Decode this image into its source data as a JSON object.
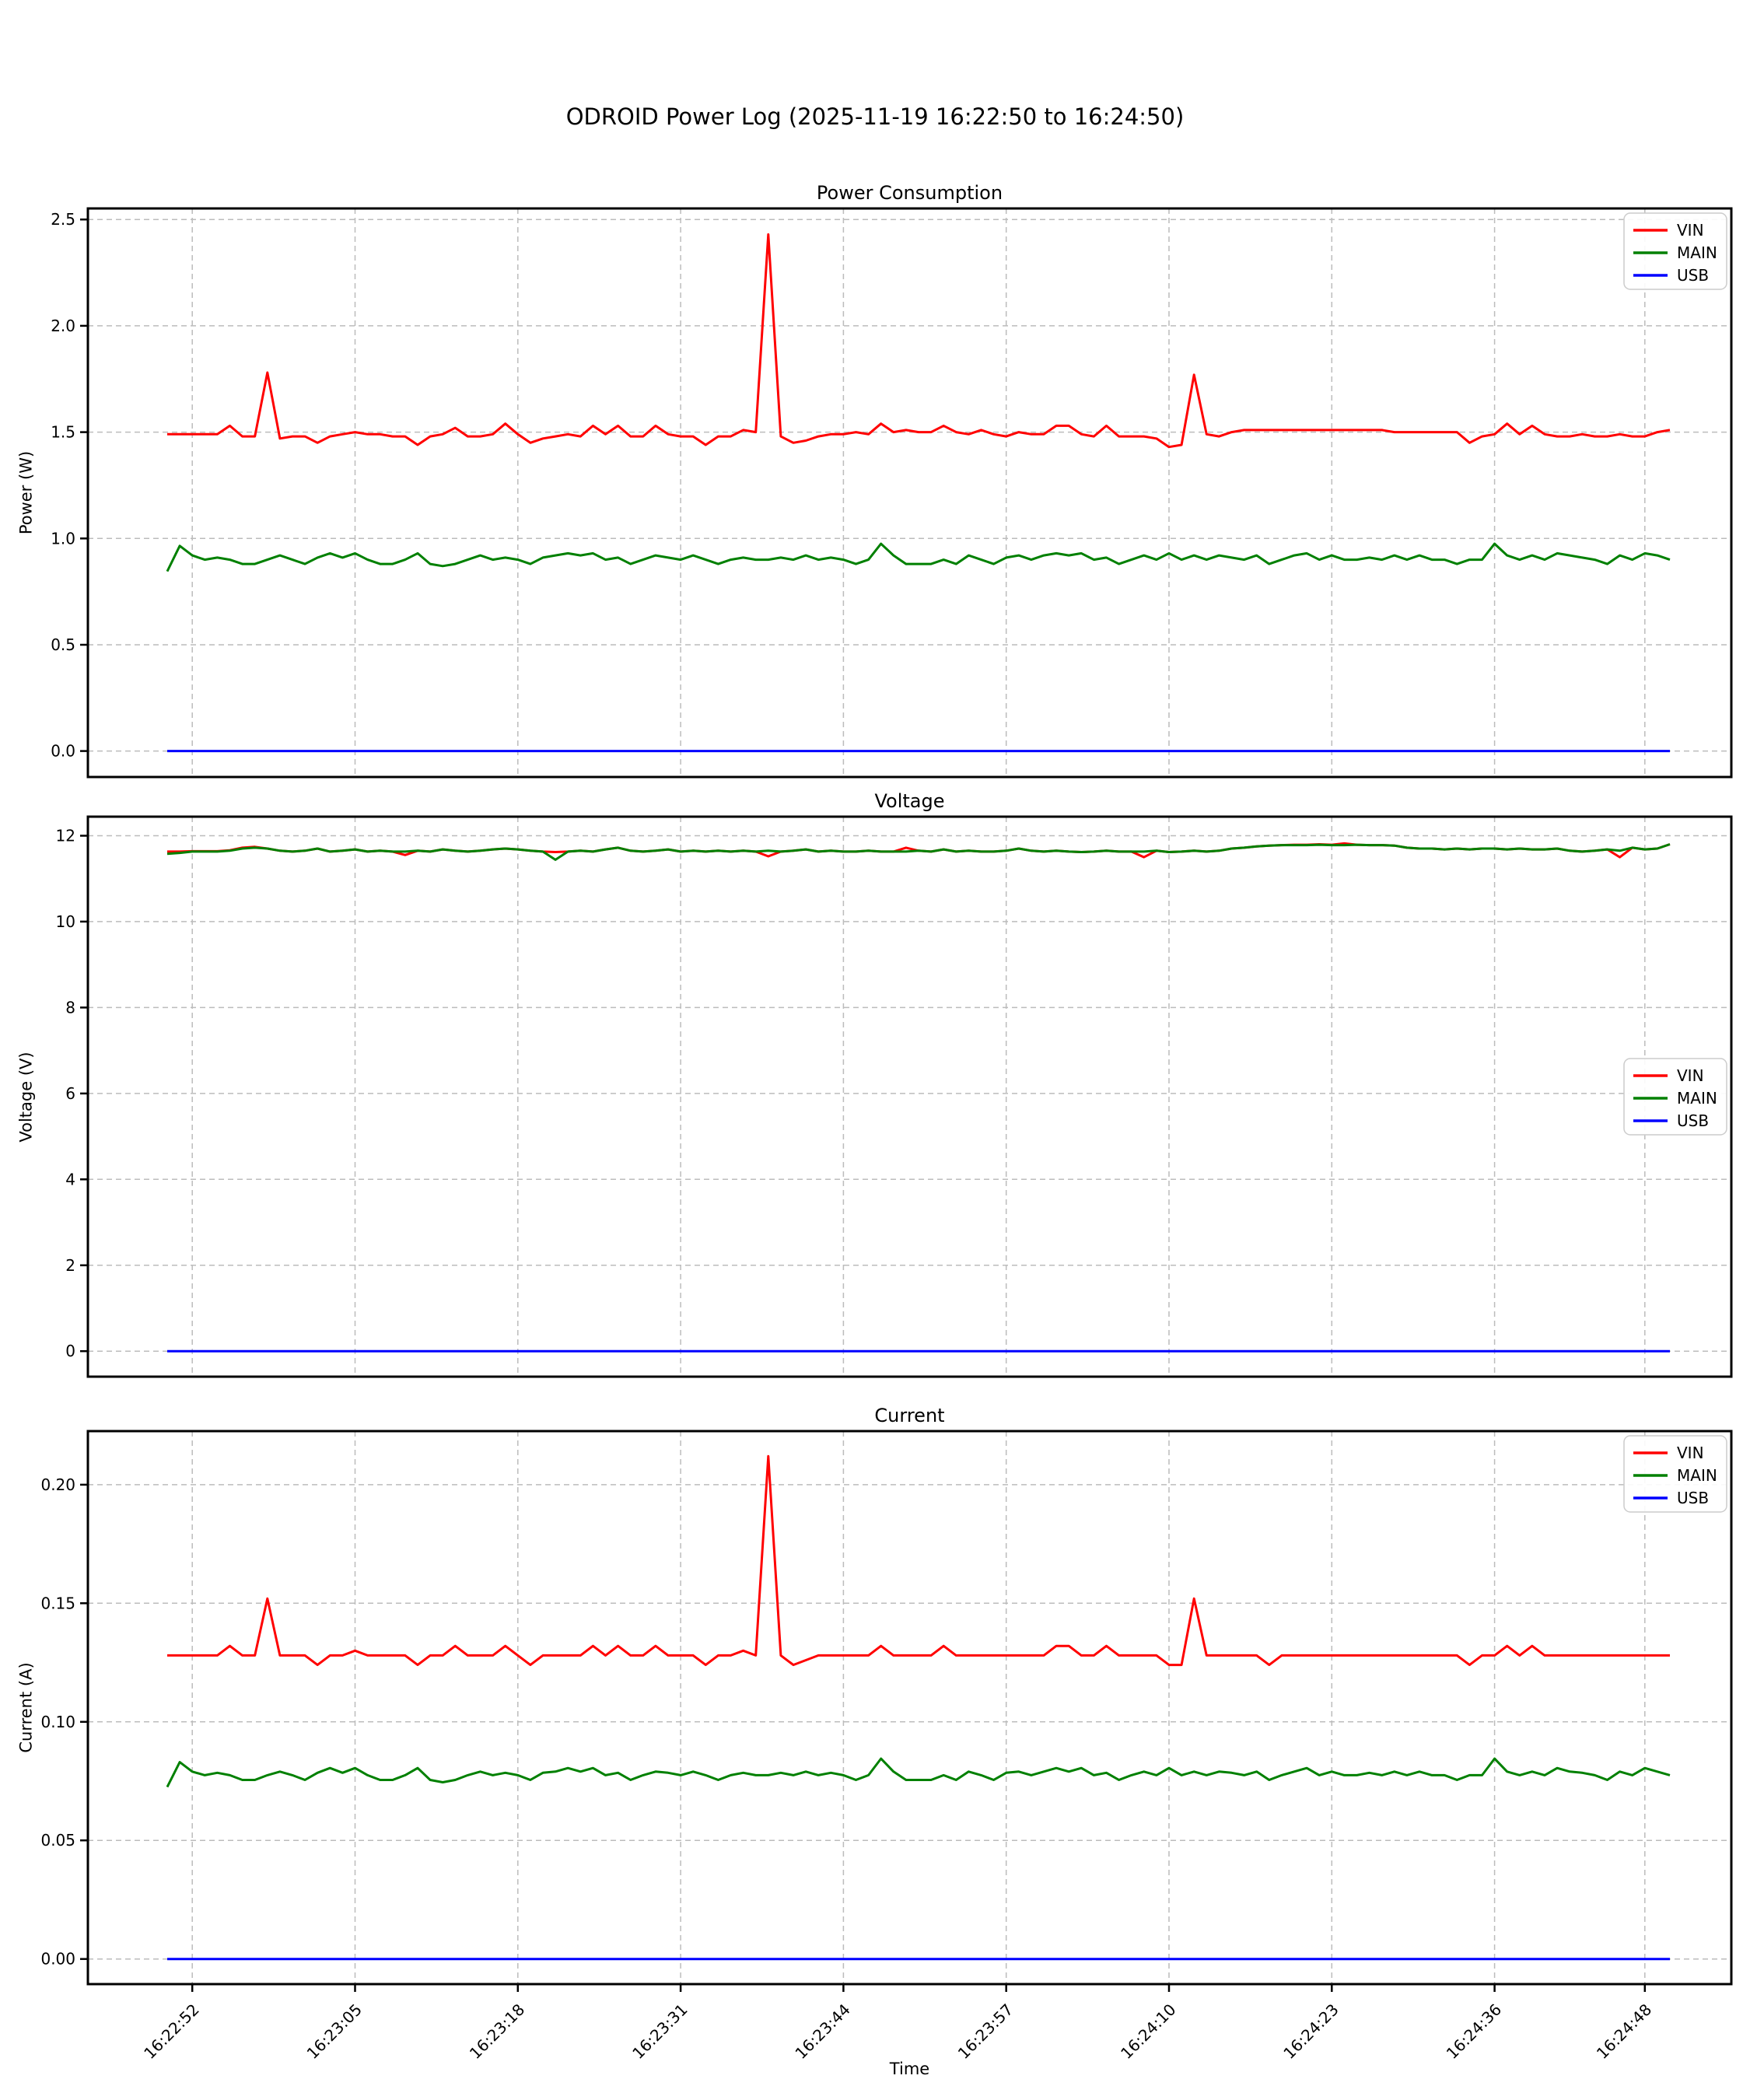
{
  "figure_title": "ODROID Power Log (2025-11-19 16:22:50 to 16:24:50)",
  "colors": {
    "vin": "#ff0000",
    "main": "#008000",
    "usb": "#0000ff",
    "grid": "#bcbcbc",
    "frame": "#000000",
    "legend_border": "#cccccc"
  },
  "legend_labels": [
    "VIN",
    "MAIN",
    "USB"
  ],
  "x_axis": {
    "label": "Time",
    "start_time": "16:22:50",
    "end_time": "16:24:50",
    "sample_interval_seconds": 1,
    "n_seconds": 120,
    "tick_seconds": [
      2,
      15,
      28,
      41,
      54,
      67,
      80,
      93,
      106,
      118
    ],
    "tick_labels": [
      "16:22:52",
      "16:23:05",
      "16:23:18",
      "16:23:31",
      "16:23:44",
      "16:23:57",
      "16:24:10",
      "16:24:23",
      "16:24:36",
      "16:24:48"
    ]
  },
  "chart_data": [
    {
      "id": "power",
      "type": "line",
      "title": "Power Consumption",
      "ylabel": "Power (W)",
      "ylim": [
        -0.122,
        2.552
      ],
      "ytick_values": [
        0.0,
        0.5,
        1.0,
        1.5,
        2.0,
        2.5
      ],
      "ytick_labels": [
        "0.0",
        "0.5",
        "1.0",
        "1.5",
        "2.0",
        "2.5"
      ],
      "grid": true,
      "legend_position": "top-right",
      "series": [
        {
          "name": "VIN",
          "color_key": "vin",
          "values": [
            1.49,
            1.49,
            1.49,
            1.49,
            1.49,
            1.53,
            1.48,
            1.48,
            1.78,
            1.47,
            1.48,
            1.48,
            1.45,
            1.48,
            1.49,
            1.5,
            1.49,
            1.49,
            1.48,
            1.48,
            1.44,
            1.48,
            1.49,
            1.52,
            1.48,
            1.48,
            1.49,
            1.54,
            1.49,
            1.45,
            1.47,
            1.48,
            1.49,
            1.48,
            1.53,
            1.49,
            1.53,
            1.48,
            1.48,
            1.53,
            1.49,
            1.48,
            1.48,
            1.44,
            1.48,
            1.48,
            1.51,
            1.5,
            2.43,
            1.48,
            1.45,
            1.46,
            1.48,
            1.49,
            1.49,
            1.5,
            1.49,
            1.54,
            1.5,
            1.51,
            1.5,
            1.5,
            1.53,
            1.5,
            1.49,
            1.51,
            1.49,
            1.48,
            1.5,
            1.49,
            1.49,
            1.53,
            1.53,
            1.49,
            1.48,
            1.53,
            1.48,
            1.48,
            1.48,
            1.47,
            1.43,
            1.44,
            1.77,
            1.49,
            1.48,
            1.5,
            1.51,
            1.51,
            1.51,
            1.51,
            1.51,
            1.51,
            1.51,
            1.51,
            1.51,
            1.51,
            1.51,
            1.51,
            1.5,
            1.5,
            1.5,
            1.5,
            1.5,
            1.5,
            1.45,
            1.48,
            1.49,
            1.54,
            1.49,
            1.53,
            1.49,
            1.48,
            1.48,
            1.49,
            1.48,
            1.48,
            1.49,
            1.48,
            1.48,
            1.5,
            1.51
          ]
        },
        {
          "name": "MAIN",
          "color_key": "main",
          "values": [
            0.845,
            0.965,
            0.92,
            0.9,
            0.91,
            0.9,
            0.88,
            0.88,
            0.9,
            0.92,
            0.9,
            0.88,
            0.91,
            0.93,
            0.91,
            0.93,
            0.9,
            0.88,
            0.88,
            0.9,
            0.93,
            0.88,
            0.87,
            0.88,
            0.9,
            0.92,
            0.9,
            0.91,
            0.9,
            0.88,
            0.91,
            0.92,
            0.93,
            0.92,
            0.93,
            0.9,
            0.91,
            0.88,
            0.9,
            0.92,
            0.91,
            0.9,
            0.92,
            0.9,
            0.88,
            0.9,
            0.91,
            0.9,
            0.9,
            0.91,
            0.9,
            0.92,
            0.9,
            0.91,
            0.9,
            0.88,
            0.9,
            0.975,
            0.92,
            0.88,
            0.88,
            0.88,
            0.9,
            0.88,
            0.92,
            0.9,
            0.88,
            0.91,
            0.92,
            0.9,
            0.92,
            0.93,
            0.92,
            0.93,
            0.9,
            0.91,
            0.88,
            0.9,
            0.92,
            0.9,
            0.93,
            0.9,
            0.92,
            0.9,
            0.92,
            0.91,
            0.9,
            0.92,
            0.88,
            0.9,
            0.92,
            0.93,
            0.9,
            0.92,
            0.9,
            0.9,
            0.91,
            0.9,
            0.92,
            0.9,
            0.92,
            0.9,
            0.9,
            0.88,
            0.9,
            0.9,
            0.975,
            0.92,
            0.9,
            0.92,
            0.9,
            0.93,
            0.92,
            0.91,
            0.9,
            0.88,
            0.92,
            0.9,
            0.93,
            0.92,
            0.9
          ]
        },
        {
          "name": "USB",
          "color_key": "usb",
          "constant": 0.0
        }
      ]
    },
    {
      "id": "voltage",
      "type": "line",
      "title": "Voltage",
      "ylabel": "Voltage (V)",
      "ylim": [
        -0.593,
        12.443
      ],
      "ytick_values": [
        0,
        2,
        4,
        6,
        8,
        10,
        12
      ],
      "ytick_labels": [
        "0",
        "2",
        "4",
        "6",
        "8",
        "10",
        "12"
      ],
      "grid": true,
      "legend_position": "center-right",
      "series": [
        {
          "name": "VIN",
          "color_key": "vin",
          "values": [
            11.63,
            11.63,
            11.64,
            11.64,
            11.64,
            11.66,
            11.72,
            11.74,
            11.7,
            11.65,
            11.63,
            11.65,
            11.7,
            11.63,
            11.65,
            11.68,
            11.63,
            11.65,
            11.63,
            11.55,
            11.65,
            11.63,
            11.68,
            11.65,
            11.63,
            11.65,
            11.68,
            11.7,
            11.68,
            11.65,
            11.63,
            11.62,
            11.63,
            11.65,
            11.63,
            11.68,
            11.72,
            11.65,
            11.63,
            11.65,
            11.68,
            11.63,
            11.65,
            11.63,
            11.65,
            11.63,
            11.65,
            11.63,
            11.52,
            11.63,
            11.65,
            11.68,
            11.63,
            11.65,
            11.63,
            11.63,
            11.65,
            11.63,
            11.63,
            11.72,
            11.65,
            11.63,
            11.68,
            11.63,
            11.65,
            11.63,
            11.63,
            11.65,
            11.7,
            11.65,
            11.63,
            11.65,
            11.63,
            11.62,
            11.63,
            11.65,
            11.63,
            11.63,
            11.5,
            11.65,
            11.62,
            11.63,
            11.65,
            11.63,
            11.65,
            11.7,
            11.72,
            11.75,
            11.77,
            11.78,
            11.79,
            11.79,
            11.8,
            11.79,
            11.82,
            11.79,
            11.78,
            11.78,
            11.77,
            11.72,
            11.7,
            11.7,
            11.68,
            11.7,
            11.68,
            11.7,
            11.7,
            11.68,
            11.7,
            11.68,
            11.68,
            11.7,
            11.65,
            11.63,
            11.65,
            11.68,
            11.5,
            11.72,
            11.68,
            11.7,
            11.8
          ]
        },
        {
          "name": "MAIN",
          "color_key": "main",
          "values": [
            11.58,
            11.6,
            11.63,
            11.63,
            11.63,
            11.65,
            11.7,
            11.72,
            11.7,
            11.65,
            11.63,
            11.65,
            11.7,
            11.63,
            11.65,
            11.68,
            11.63,
            11.65,
            11.63,
            11.63,
            11.65,
            11.63,
            11.68,
            11.65,
            11.63,
            11.65,
            11.68,
            11.7,
            11.68,
            11.65,
            11.63,
            11.44,
            11.63,
            11.65,
            11.63,
            11.68,
            11.72,
            11.65,
            11.63,
            11.65,
            11.68,
            11.63,
            11.65,
            11.63,
            11.65,
            11.63,
            11.65,
            11.63,
            11.65,
            11.63,
            11.65,
            11.68,
            11.63,
            11.65,
            11.63,
            11.63,
            11.65,
            11.63,
            11.63,
            11.63,
            11.65,
            11.63,
            11.68,
            11.63,
            11.65,
            11.63,
            11.63,
            11.65,
            11.7,
            11.65,
            11.63,
            11.65,
            11.63,
            11.62,
            11.63,
            11.65,
            11.63,
            11.63,
            11.63,
            11.65,
            11.62,
            11.63,
            11.65,
            11.63,
            11.65,
            11.7,
            11.72,
            11.75,
            11.77,
            11.78,
            11.78,
            11.78,
            11.79,
            11.78,
            11.78,
            11.79,
            11.78,
            11.78,
            11.77,
            11.72,
            11.7,
            11.7,
            11.68,
            11.7,
            11.68,
            11.7,
            11.7,
            11.68,
            11.7,
            11.68,
            11.68,
            11.7,
            11.65,
            11.63,
            11.65,
            11.68,
            11.65,
            11.72,
            11.68,
            11.7,
            11.8
          ]
        },
        {
          "name": "USB",
          "color_key": "usb",
          "constant": 0.0
        }
      ]
    },
    {
      "id": "current",
      "type": "line",
      "title": "Current",
      "ylabel": "Current (A)",
      "ylim": [
        -0.0106,
        0.2226
      ],
      "ytick_values": [
        0.0,
        0.05,
        0.1,
        0.15,
        0.2
      ],
      "ytick_labels": [
        "0.00",
        "0.05",
        "0.10",
        "0.15",
        "0.20"
      ],
      "grid": true,
      "legend_position": "top-right",
      "series": [
        {
          "name": "VIN",
          "color_key": "vin",
          "values": [
            0.128,
            0.128,
            0.128,
            0.128,
            0.128,
            0.132,
            0.128,
            0.128,
            0.152,
            0.128,
            0.128,
            0.128,
            0.124,
            0.128,
            0.128,
            0.13,
            0.128,
            0.128,
            0.128,
            0.128,
            0.124,
            0.128,
            0.128,
            0.132,
            0.128,
            0.128,
            0.128,
            0.132,
            0.128,
            0.124,
            0.128,
            0.128,
            0.128,
            0.128,
            0.132,
            0.128,
            0.132,
            0.128,
            0.128,
            0.132,
            0.128,
            0.128,
            0.128,
            0.124,
            0.128,
            0.128,
            0.13,
            0.128,
            0.212,
            0.128,
            0.124,
            0.126,
            0.128,
            0.128,
            0.128,
            0.128,
            0.128,
            0.132,
            0.128,
            0.128,
            0.128,
            0.128,
            0.132,
            0.128,
            0.128,
            0.128,
            0.128,
            0.128,
            0.128,
            0.128,
            0.128,
            0.132,
            0.132,
            0.128,
            0.128,
            0.132,
            0.128,
            0.128,
            0.128,
            0.128,
            0.124,
            0.124,
            0.152,
            0.128,
            0.128,
            0.128,
            0.128,
            0.128,
            0.124,
            0.128,
            0.128,
            0.128,
            0.128,
            0.128,
            0.128,
            0.128,
            0.128,
            0.128,
            0.128,
            0.128,
            0.128,
            0.128,
            0.128,
            0.128,
            0.124,
            0.128,
            0.128,
            0.132,
            0.128,
            0.132,
            0.128,
            0.128,
            0.128,
            0.128,
            0.128,
            0.128,
            0.128,
            0.128,
            0.128,
            0.128,
            0.128
          ]
        },
        {
          "name": "MAIN",
          "color_key": "main",
          "values": [
            0.0725,
            0.083,
            0.079,
            0.0775,
            0.0785,
            0.0775,
            0.0755,
            0.0755,
            0.0775,
            0.079,
            0.0775,
            0.0755,
            0.0785,
            0.0805,
            0.0785,
            0.0805,
            0.0775,
            0.0755,
            0.0755,
            0.0775,
            0.0805,
            0.0755,
            0.0745,
            0.0755,
            0.0775,
            0.079,
            0.0775,
            0.0785,
            0.0775,
            0.0755,
            0.0785,
            0.079,
            0.0805,
            0.079,
            0.0805,
            0.0775,
            0.0785,
            0.0755,
            0.0775,
            0.079,
            0.0785,
            0.0775,
            0.079,
            0.0775,
            0.0755,
            0.0775,
            0.0785,
            0.0775,
            0.0775,
            0.0785,
            0.0775,
            0.079,
            0.0775,
            0.0785,
            0.0775,
            0.0755,
            0.0775,
            0.0845,
            0.079,
            0.0755,
            0.0755,
            0.0755,
            0.0775,
            0.0755,
            0.079,
            0.0775,
            0.0755,
            0.0785,
            0.079,
            0.0775,
            0.079,
            0.0805,
            0.079,
            0.0805,
            0.0775,
            0.0785,
            0.0755,
            0.0775,
            0.079,
            0.0775,
            0.0805,
            0.0775,
            0.079,
            0.0775,
            0.079,
            0.0785,
            0.0775,
            0.079,
            0.0755,
            0.0775,
            0.079,
            0.0805,
            0.0775,
            0.079,
            0.0775,
            0.0775,
            0.0785,
            0.0775,
            0.079,
            0.0775,
            0.079,
            0.0775,
            0.0775,
            0.0755,
            0.0775,
            0.0775,
            0.0845,
            0.079,
            0.0775,
            0.079,
            0.0775,
            0.0805,
            0.079,
            0.0785,
            0.0775,
            0.0755,
            0.079,
            0.0775,
            0.0805,
            0.079,
            0.0775
          ]
        },
        {
          "name": "USB",
          "color_key": "usb",
          "constant": 0.0
        }
      ]
    }
  ]
}
